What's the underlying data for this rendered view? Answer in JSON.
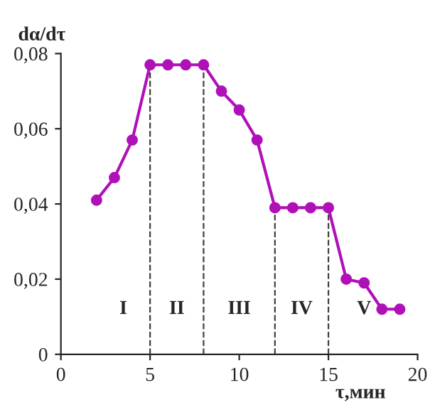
{
  "chart_data": {
    "type": "line",
    "xlabel": "τ,мин",
    "ylabel": "dα/dτ",
    "x": [
      2,
      3,
      4,
      5,
      6,
      7,
      8,
      9,
      10,
      11,
      12,
      13,
      14,
      15,
      16,
      17,
      18,
      19
    ],
    "series": [
      {
        "color": "#b010b8",
        "values": [
          0.041,
          0.047,
          0.057,
          0.077,
          0.077,
          0.077,
          0.077,
          0.07,
          0.065,
          0.057,
          0.039,
          0.039,
          0.039,
          0.039,
          0.02,
          0.019,
          0.012,
          0.012
        ]
      }
    ],
    "xlim": [
      0,
      20
    ],
    "xticks": [
      0,
      5,
      10,
      15,
      20
    ],
    "ylim": [
      0,
      0.08
    ],
    "yticks": [
      {
        "value": 0,
        "label": "0"
      },
      {
        "value": 0.02,
        "label": "0,02"
      },
      {
        "value": 0.04,
        "label": "0,04"
      },
      {
        "value": 0.06,
        "label": "0,06"
      },
      {
        "value": 0.08,
        "label": "0,08"
      }
    ],
    "ref_lines": [
      {
        "axis": "x",
        "value": 5,
        "line_style": "dashed"
      },
      {
        "axis": "x",
        "value": 8,
        "line_style": "dashed"
      },
      {
        "axis": "x",
        "value": 12,
        "line_style": "dashed"
      },
      {
        "axis": "x",
        "value": 15,
        "line_style": "dashed"
      }
    ],
    "annotations": [
      "I",
      "II",
      "III",
      "IV",
      "V"
    ],
    "marker": "circle",
    "line_style": "solid",
    "grid": false,
    "legend": false
  }
}
